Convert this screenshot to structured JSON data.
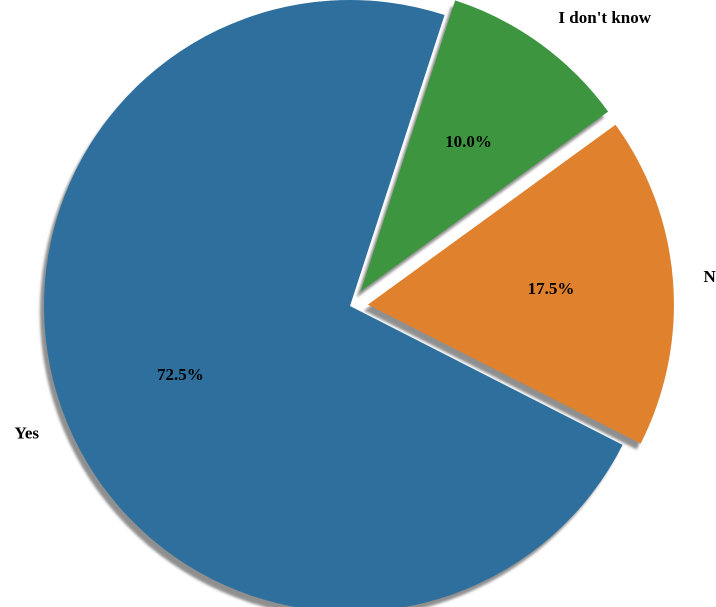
{
  "chart_data": {
    "type": "pie",
    "title": "",
    "slices": [
      {
        "label": "Yes",
        "value": 72.5,
        "display": "72.5%",
        "color": "#2e6f9e",
        "exploded": false
      },
      {
        "label": "No",
        "value": 17.5,
        "display": "17.5%",
        "color": "#e0812d",
        "exploded": true
      },
      {
        "label": "I don't know",
        "value": 10.0,
        "display": "10.0%",
        "color": "#3d963f",
        "exploded": true
      }
    ],
    "start_angle_deg": 72,
    "direction": "counterclockwise",
    "shadow": true,
    "legend": "none"
  }
}
